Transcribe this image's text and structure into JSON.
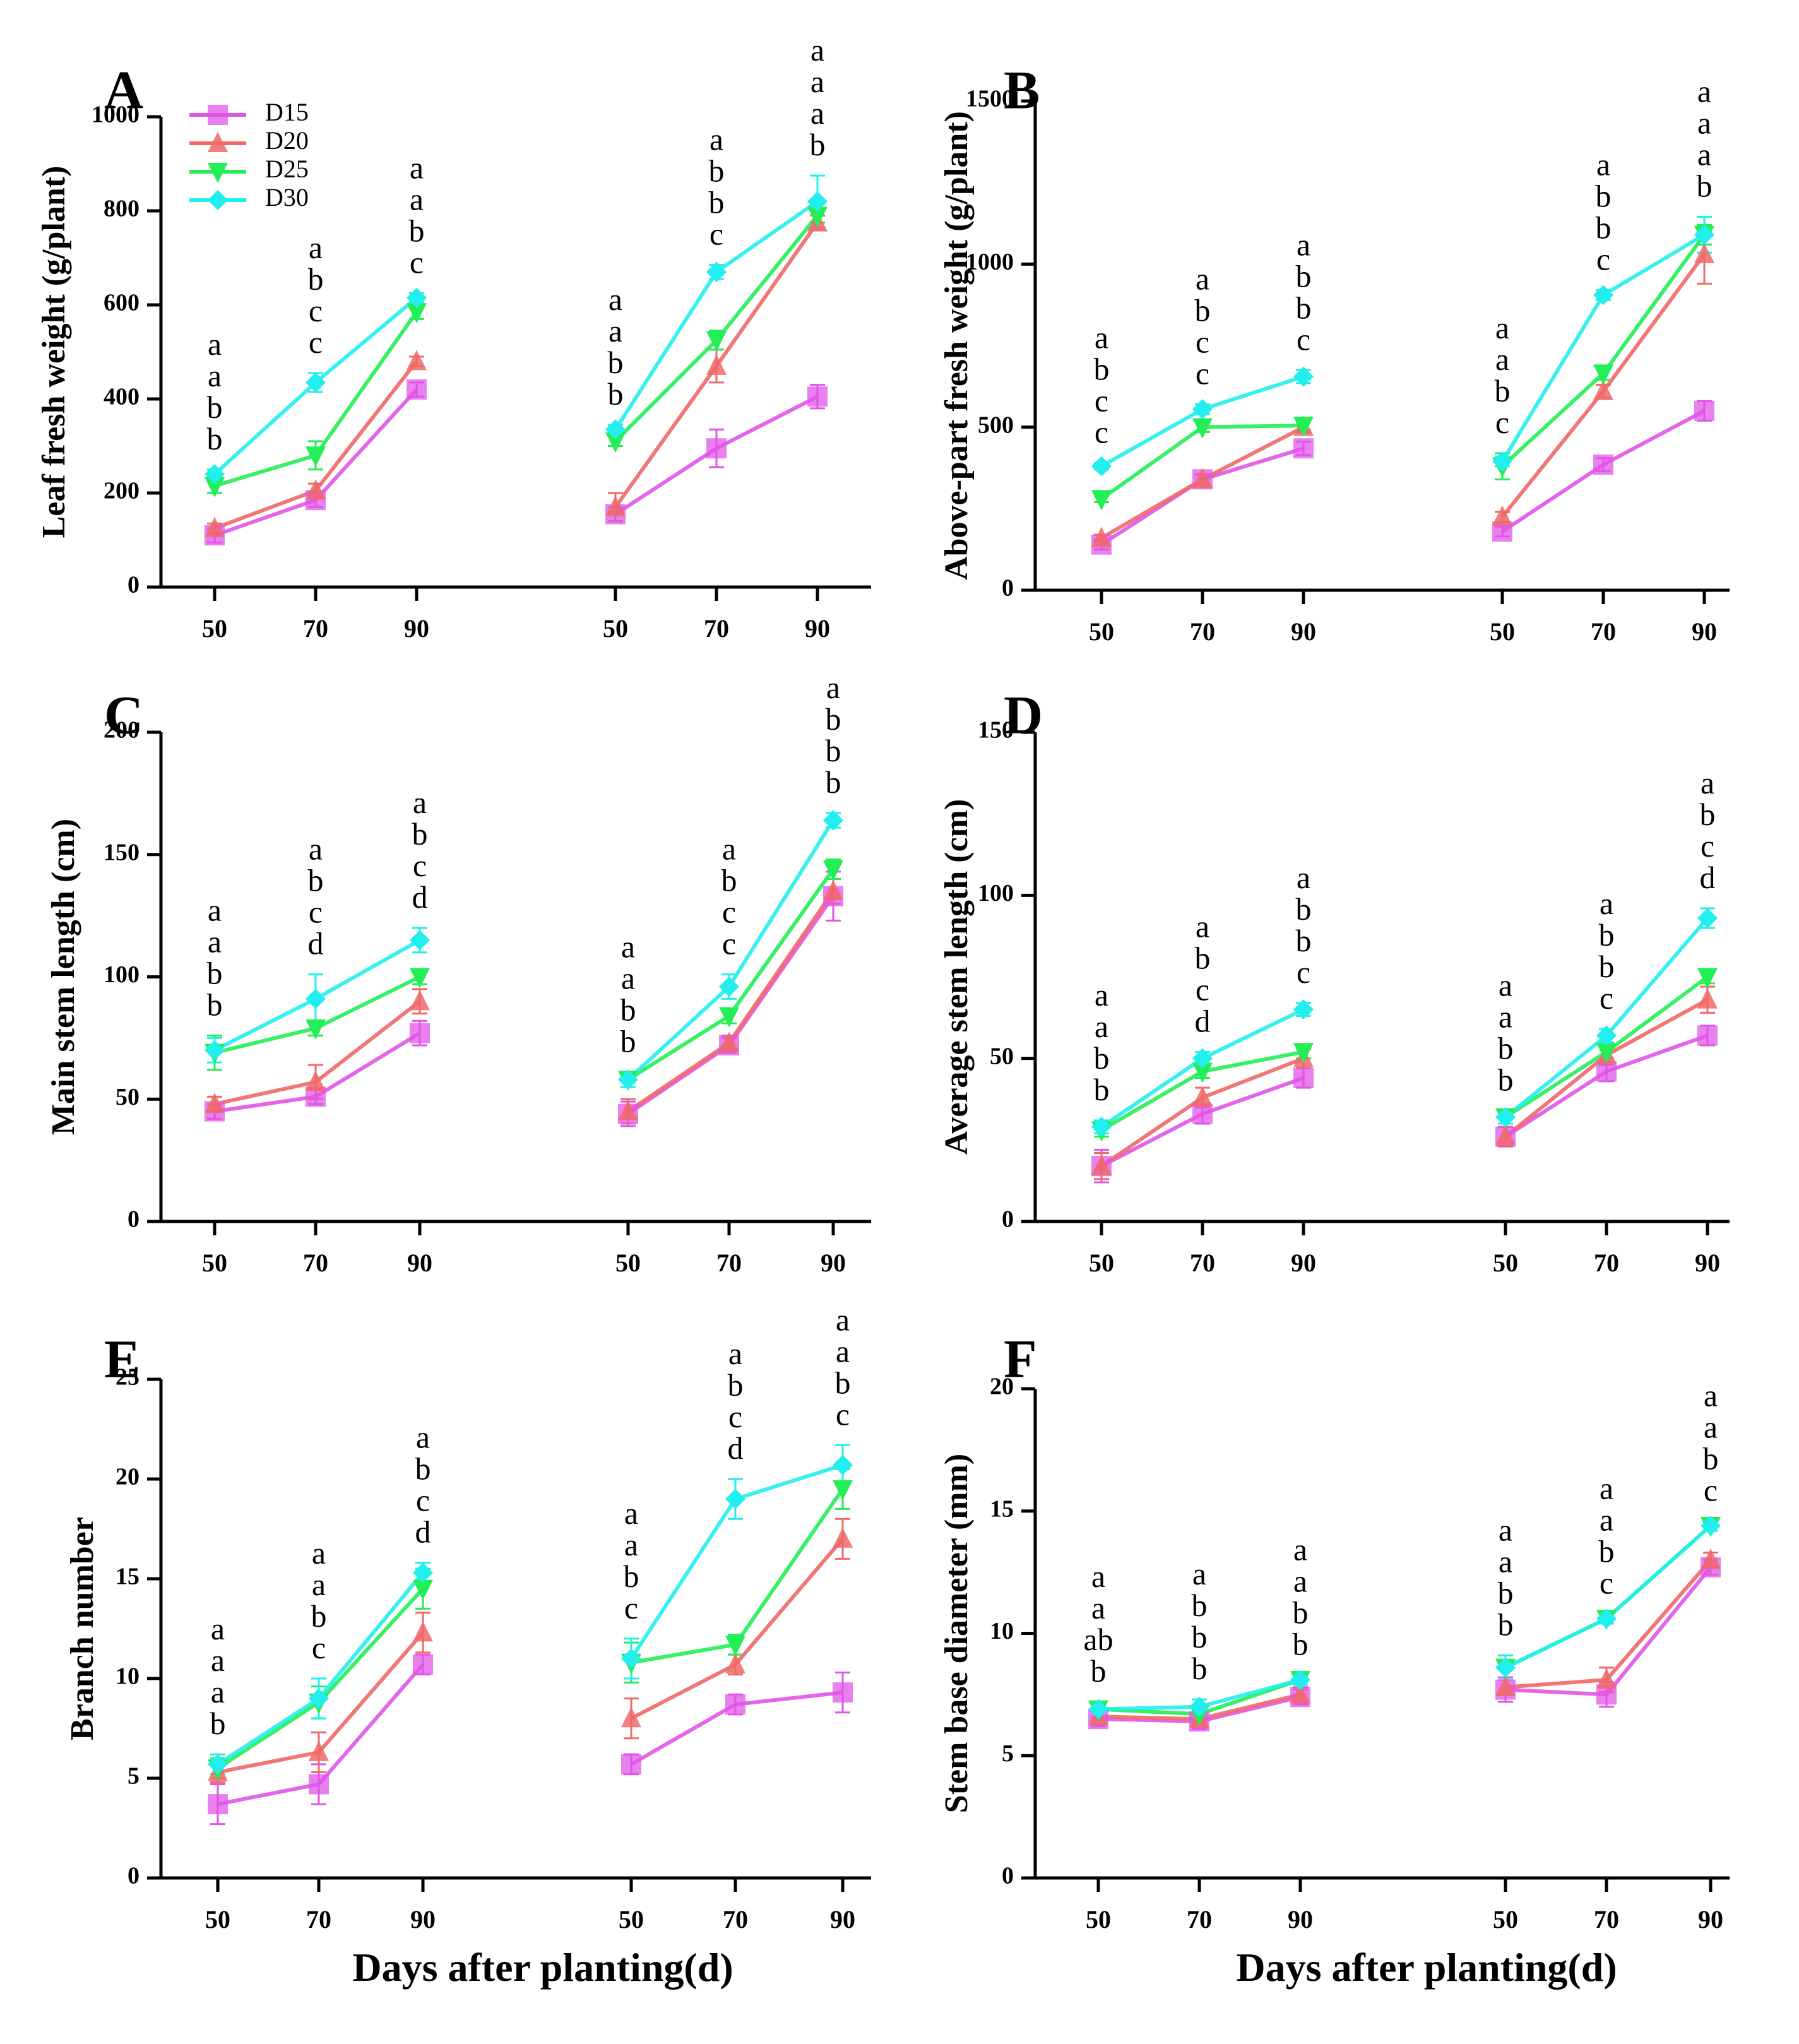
{
  "figure": {
    "xlabel_left": "Days after planting(d)",
    "xlabel_right": "Days after planting(d)"
  },
  "colors": {
    "D15": "#e055e8",
    "D20": "#f06868",
    "D25": "#22ee55",
    "D30": "#22eeee"
  },
  "chart_data": [
    {
      "type": "line",
      "panel": "A",
      "ylabel": "Leaf fresh weight (g/plant)",
      "ylim": [
        0,
        1000
      ],
      "yticks": [
        0,
        200,
        400,
        600,
        800,
        1000
      ],
      "categories": [
        "50",
        "70",
        "90",
        "50",
        "70",
        "90"
      ],
      "legend": [
        "D15",
        "D20",
        "D25",
        "D30"
      ],
      "legend_position": "top-left",
      "series": [
        {
          "name": "D15",
          "values": [
            110,
            185,
            420,
            155,
            295,
            405
          ],
          "errors": [
            15,
            15,
            15,
            15,
            40,
            25
          ]
        },
        {
          "name": "D20",
          "values": [
            125,
            205,
            480,
            170,
            470,
            775
          ],
          "errors": [
            10,
            15,
            10,
            30,
            35,
            15
          ]
        },
        {
          "name": "D25",
          "values": [
            215,
            280,
            585,
            310,
            525,
            790
          ],
          "errors": [
            15,
            30,
            15,
            10,
            20,
            15
          ]
        },
        {
          "name": "D30",
          "values": [
            240,
            435,
            615,
            335,
            670,
            820
          ],
          "errors": [
            10,
            20,
            10,
            10,
            15,
            55
          ]
        }
      ],
      "letters": [
        [
          "a",
          "a",
          "b",
          "b"
        ],
        [
          "a",
          "b",
          "c",
          "c"
        ],
        [
          "a",
          "a",
          "b",
          "c"
        ],
        [
          "a",
          "a",
          "b",
          "b"
        ],
        [
          "a",
          "b",
          "b",
          "c"
        ],
        [
          "a",
          "a",
          "a",
          "b"
        ]
      ]
    },
    {
      "type": "line",
      "panel": "B",
      "ylabel": "Above-part fresh weight (g/plant)",
      "ylim": [
        0,
        1500
      ],
      "yticks": [
        0,
        500,
        1000,
        1500
      ],
      "categories": [
        "50",
        "70",
        "90",
        "50",
        "70",
        "90"
      ],
      "series": [
        {
          "name": "D15",
          "values": [
            140,
            340,
            435,
            180,
            385,
            550
          ],
          "errors": [
            15,
            15,
            20,
            15,
            20,
            30
          ]
        },
        {
          "name": "D20",
          "values": [
            160,
            340,
            500,
            225,
            610,
            1030
          ],
          "errors": [
            10,
            15,
            15,
            15,
            20,
            90
          ]
        },
        {
          "name": "D25",
          "values": [
            280,
            500,
            505,
            380,
            665,
            1090
          ],
          "errors": [
            10,
            15,
            15,
            40,
            20,
            30
          ]
        },
        {
          "name": "D30",
          "values": [
            380,
            555,
            655,
            395,
            905,
            1090
          ],
          "errors": [
            10,
            15,
            20,
            15,
            15,
            55
          ]
        }
      ],
      "letters": [
        [
          "a",
          "b",
          "c",
          "c"
        ],
        [
          "a",
          "b",
          "c",
          "c"
        ],
        [
          "a",
          "b",
          "b",
          "c"
        ],
        [
          "a",
          "a",
          "b",
          "c"
        ],
        [
          "a",
          "b",
          "b",
          "c"
        ],
        [
          "a",
          "a",
          "a",
          "b"
        ]
      ]
    },
    {
      "type": "line",
      "panel": "C",
      "ylabel": "Main stem length (cm)",
      "ylim": [
        0,
        200
      ],
      "yticks": [
        0,
        50,
        100,
        150,
        200
      ],
      "categories": [
        "50",
        "70",
        "90",
        "50",
        "70",
        "90"
      ],
      "series": [
        {
          "name": "D15",
          "values": [
            45,
            51,
            77,
            44,
            72,
            133
          ],
          "errors": [
            3,
            3,
            5,
            5,
            3,
            10
          ]
        },
        {
          "name": "D20",
          "values": [
            48,
            57,
            90,
            45,
            73,
            135
          ],
          "errors": [
            3,
            7,
            5,
            5,
            3,
            5
          ]
        },
        {
          "name": "D25",
          "values": [
            69,
            79,
            100,
            58,
            84,
            144
          ],
          "errors": [
            7,
            3,
            3,
            3,
            3,
            4
          ]
        },
        {
          "name": "D30",
          "values": [
            70,
            91,
            115,
            58,
            96,
            164
          ],
          "errors": [
            5,
            10,
            5,
            3,
            5,
            3
          ]
        }
      ],
      "letters": [
        [
          "a",
          "a",
          "b",
          "b"
        ],
        [
          "a",
          "b",
          "c",
          "d"
        ],
        [
          "a",
          "b",
          "c",
          "d"
        ],
        [
          "a",
          "a",
          "b",
          "b"
        ],
        [
          "a",
          "b",
          "c",
          "c"
        ],
        [
          "a",
          "b",
          "b",
          "b"
        ]
      ]
    },
    {
      "type": "line",
      "panel": "D",
      "ylabel": "Average stem length (cm)",
      "ylim": [
        0,
        150
      ],
      "yticks": [
        0,
        50,
        100,
        150
      ],
      "categories": [
        "50",
        "70",
        "90",
        "50",
        "70",
        "90"
      ],
      "series": [
        {
          "name": "D15",
          "values": [
            17,
            33,
            44,
            26,
            46,
            57
          ],
          "errors": [
            5,
            3,
            3,
            3,
            3,
            3
          ]
        },
        {
          "name": "D20",
          "values": [
            17,
            38,
            50,
            26,
            51,
            68
          ],
          "errors": [
            4,
            3,
            3,
            3,
            3,
            4
          ]
        },
        {
          "name": "D25",
          "values": [
            28,
            46,
            52,
            32,
            52,
            75
          ],
          "errors": [
            2,
            2,
            2,
            2,
            2,
            2
          ]
        },
        {
          "name": "D30",
          "values": [
            29,
            50,
            65,
            32,
            57,
            93
          ],
          "errors": [
            2,
            2,
            2,
            2,
            2,
            3
          ]
        }
      ],
      "letters": [
        [
          "a",
          "a",
          "b",
          "b"
        ],
        [
          "a",
          "b",
          "c",
          "d"
        ],
        [
          "a",
          "b",
          "b",
          "c"
        ],
        [
          "a",
          "a",
          "b",
          "b"
        ],
        [
          "a",
          "b",
          "b",
          "c"
        ],
        [
          "a",
          "b",
          "c",
          "d"
        ]
      ]
    },
    {
      "type": "line",
      "panel": "E",
      "ylabel": "Branch number",
      "ylim": [
        0,
        25
      ],
      "yticks": [
        0,
        5,
        10,
        15,
        20,
        25
      ],
      "categories": [
        "50",
        "70",
        "90",
        "50",
        "70",
        "90"
      ],
      "series": [
        {
          "name": "D15",
          "values": [
            3.7,
            4.7,
            10.7,
            5.7,
            8.7,
            9.3
          ],
          "errors": [
            1.0,
            1.0,
            0.5,
            0.5,
            0.5,
            1.0
          ]
        },
        {
          "name": "D20",
          "values": [
            5.3,
            6.3,
            12.3,
            8.0,
            10.7,
            17.0
          ],
          "errors": [
            0.5,
            1.0,
            1.0,
            1.0,
            0.5,
            1.0
          ]
        },
        {
          "name": "D25",
          "values": [
            5.5,
            8.8,
            14.5,
            10.8,
            11.7,
            19.5
          ],
          "errors": [
            0.5,
            0.8,
            1.0,
            1.0,
            0.5,
            1.0
          ]
        },
        {
          "name": "D30",
          "values": [
            5.7,
            9.0,
            15.3,
            11.0,
            19.0,
            20.7
          ],
          "errors": [
            0.5,
            1.0,
            0.5,
            1.0,
            1.0,
            1.0
          ]
        }
      ],
      "letters": [
        [
          "a",
          "a",
          "a",
          "b"
        ],
        [
          "a",
          "a",
          "b",
          "c"
        ],
        [
          "a",
          "b",
          "c",
          "d"
        ],
        [
          "a",
          "a",
          "b",
          "c"
        ],
        [
          "a",
          "b",
          "c",
          "d"
        ],
        [
          "a",
          "a",
          "b",
          "c"
        ]
      ]
    },
    {
      "type": "line",
      "panel": "F",
      "ylabel": "Stem base diameter  (mm)",
      "ylim": [
        0,
        20
      ],
      "yticks": [
        0,
        5,
        10,
        15,
        20
      ],
      "categories": [
        "50",
        "70",
        "90",
        "50",
        "70",
        "90"
      ],
      "series": [
        {
          "name": "D15",
          "values": [
            6.5,
            6.4,
            7.4,
            7.7,
            7.5,
            12.7
          ],
          "errors": [
            0.3,
            0.3,
            0.3,
            0.5,
            0.5,
            0.3
          ]
        },
        {
          "name": "D20",
          "values": [
            6.6,
            6.5,
            7.5,
            7.8,
            8.1,
            13.0
          ],
          "errors": [
            0.3,
            0.3,
            0.3,
            0.3,
            0.5,
            0.3
          ]
        },
        {
          "name": "D25",
          "values": [
            6.9,
            6.7,
            8.1,
            8.6,
            10.6,
            14.4
          ],
          "errors": [
            0.3,
            0.3,
            0.2,
            0.5,
            0.2,
            0.2
          ]
        },
        {
          "name": "D30",
          "values": [
            6.9,
            7.0,
            8.1,
            8.6,
            10.6,
            14.4
          ],
          "errors": [
            0.3,
            0.3,
            0.2,
            0.5,
            0.2,
            0.2
          ]
        }
      ],
      "letters": [
        [
          "a",
          "a",
          "ab",
          "b"
        ],
        [
          "a",
          "b",
          "b",
          "b"
        ],
        [
          "a",
          "a",
          "b",
          "b"
        ],
        [
          "a",
          "a",
          "b",
          "b"
        ],
        [
          "a",
          "a",
          "b",
          "c"
        ],
        [
          "a",
          "a",
          "b",
          "c"
        ]
      ]
    }
  ]
}
